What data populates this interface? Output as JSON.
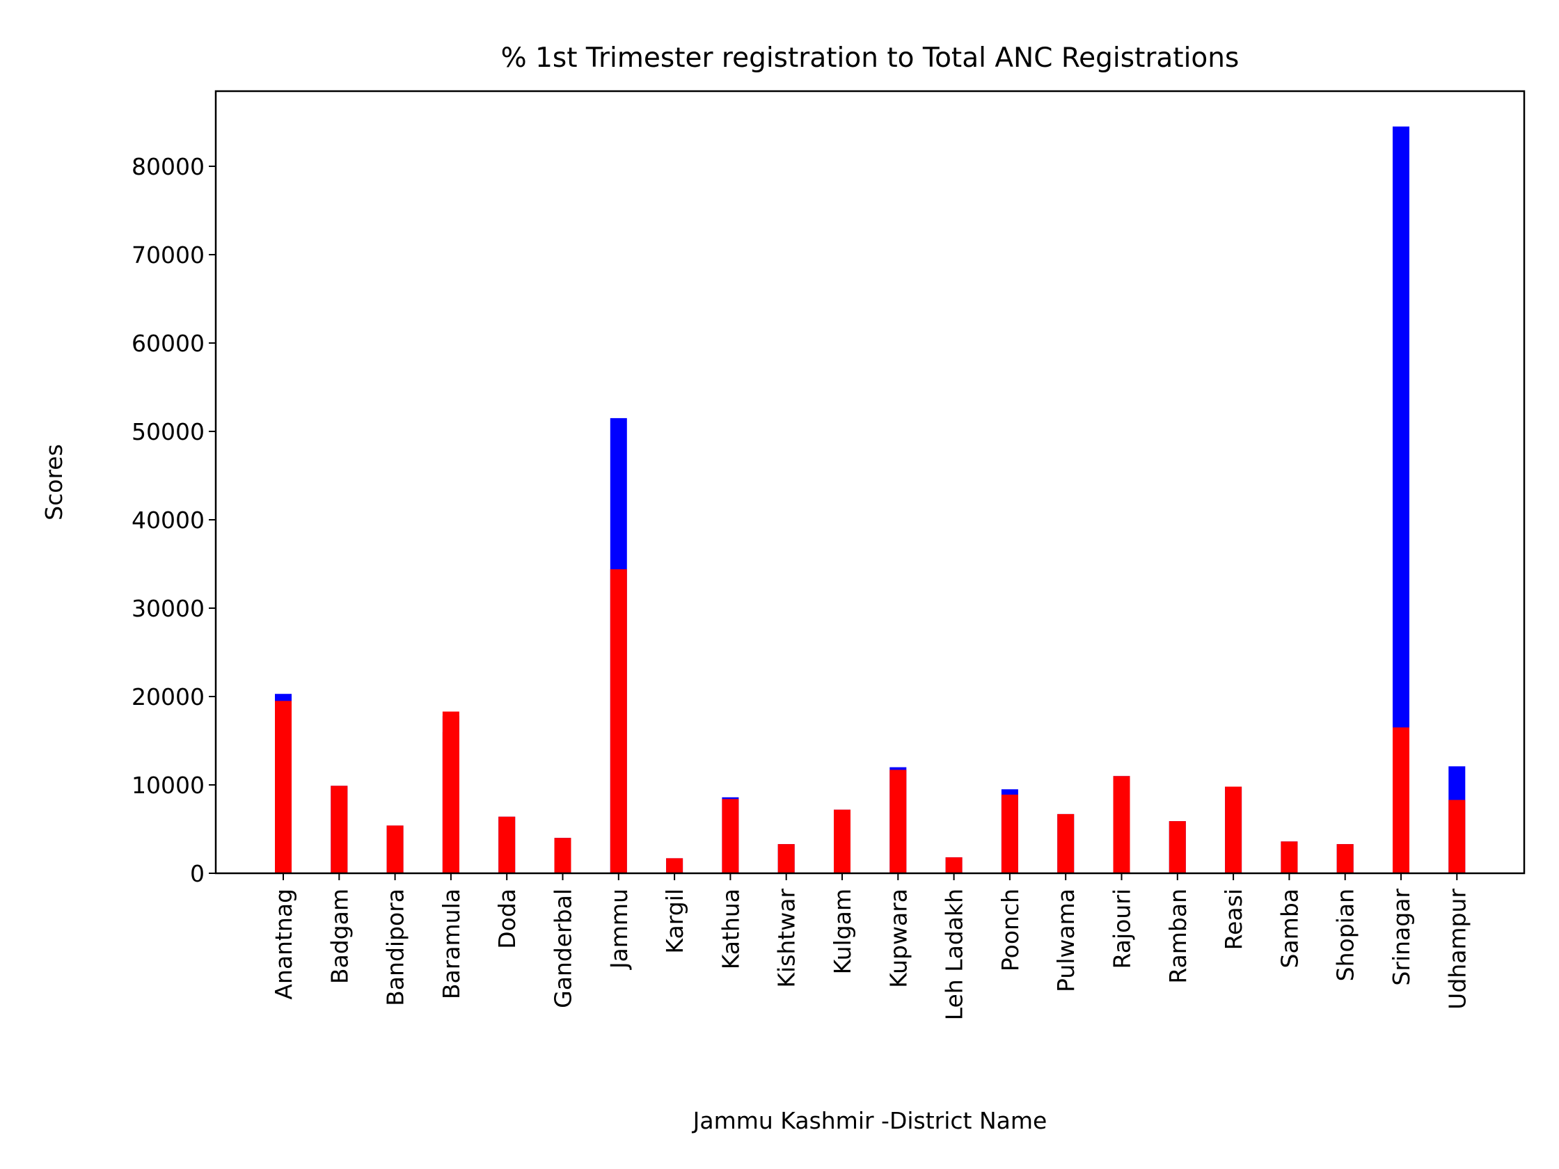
{
  "chart_data": {
    "type": "bar",
    "title": "% 1st Trimester registration to Total ANC Registrations",
    "xlabel": "Jammu Kashmir -District Name",
    "ylabel": "Scores",
    "ylim": [
      0,
      88500
    ],
    "yticks": [
      0,
      10000,
      20000,
      30000,
      40000,
      50000,
      60000,
      70000,
      80000
    ],
    "categories": [
      "Anantnag",
      "Badgam",
      "Bandipora",
      "Baramula",
      "Doda",
      "Ganderbal",
      "Jammu",
      "Kargil",
      "Kathua",
      "Kishtwar",
      "Kulgam",
      "Kupwara",
      "Leh Ladakh",
      "Poonch",
      "Pulwama",
      "Rajouri",
      "Ramban",
      "Reasi",
      "Samba",
      "Shopian",
      "Srinagar",
      "Udhampur"
    ],
    "series": [
      {
        "color": "#0000ff",
        "values": [
          20300,
          9900,
          5400,
          17800,
          6400,
          4000,
          51500,
          1700,
          8600,
          3300,
          7200,
          12000,
          1800,
          9500,
          6700,
          11000,
          5900,
          9800,
          3600,
          3300,
          84500,
          12100
        ]
      },
      {
        "color": "#ff0000",
        "values": [
          19500,
          9900,
          5400,
          16000,
          6400,
          4000,
          34400,
          1700,
          8400,
          3300,
          7200,
          11700,
          1800,
          8900,
          6700,
          11000,
          5900,
          9800,
          3600,
          3300,
          16500,
          8300
        ]
      },
      {
        "color": "#ff0000",
        "values": [
          0,
          0,
          0,
          18300,
          0,
          0,
          0,
          0,
          0,
          0,
          0,
          0,
          0,
          0,
          0,
          0,
          0,
          0,
          0,
          0,
          0,
          0
        ]
      }
    ],
    "grid": false,
    "legend": "none"
  }
}
